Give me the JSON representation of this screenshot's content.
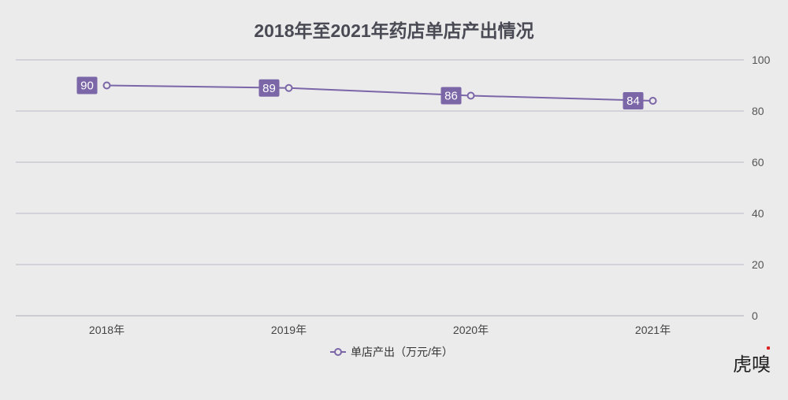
{
  "chart_data": {
    "type": "line",
    "title": "2018年至2021年药店单店产出情况",
    "categories": [
      "2018年",
      "2019年",
      "2020年",
      "2021年"
    ],
    "series": [
      {
        "name": "单店产出（万元/年）",
        "values": [
          90,
          89,
          86,
          84
        ],
        "color": "#7b66a8"
      }
    ],
    "xlabel": "",
    "ylabel": "",
    "ylim": [
      0,
      100
    ],
    "yticks": [
      0,
      20,
      40,
      60,
      80,
      100
    ],
    "y_axis_position": "right",
    "grid": true,
    "data_labels": true,
    "legend_position": "bottom"
  },
  "legend": {
    "label": "单店产出（万元/年）"
  },
  "watermark": "虎嗅"
}
